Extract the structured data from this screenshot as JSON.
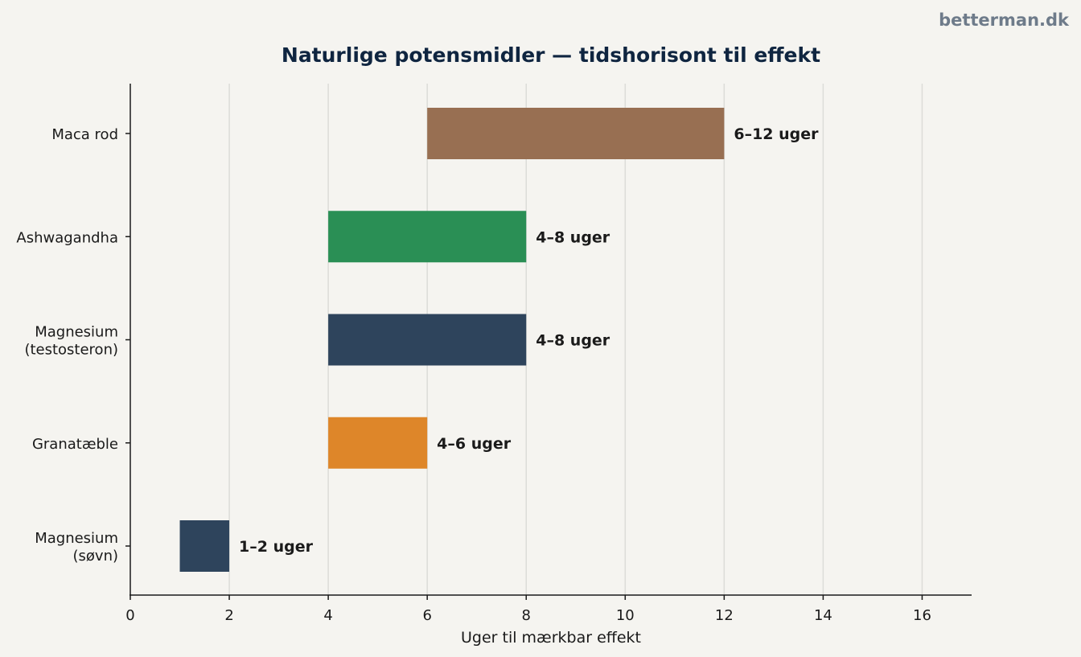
{
  "watermark": "betterman.dk",
  "chart_data": {
    "type": "bar",
    "orientation": "horizontal-range",
    "title": "Naturlige potensmidler — tidshorisont til effekt",
    "xlabel": "Uger til mærkbar effekt",
    "ylabel": "",
    "xlim": [
      0,
      17
    ],
    "xticks": [
      0,
      2,
      4,
      6,
      8,
      10,
      12,
      14,
      16
    ],
    "grid": "vertical",
    "categories": [
      "Maca rod",
      "Ashwagandha",
      "Magnesium\n(testosteron)",
      "Granatæble",
      "Magnesium\n(søvn)"
    ],
    "series": [
      {
        "start": [
          6,
          4,
          4,
          4,
          1
        ],
        "end": [
          12,
          8,
          8,
          6,
          2
        ],
        "labels": [
          "6–12 uger",
          "4–8 uger",
          "4–8 uger",
          "4–6 uger",
          "1–2 uger"
        ],
        "colors": [
          "#986f52",
          "#2a8f55",
          "#2e445c",
          "#de8629",
          "#2e445c"
        ]
      }
    ]
  },
  "colors": {
    "background": "#f5f4f0",
    "title": "#0f2540",
    "text": "#1a1a1a",
    "grid": "#dcdcd8",
    "watermark": "#6e7b8a"
  }
}
